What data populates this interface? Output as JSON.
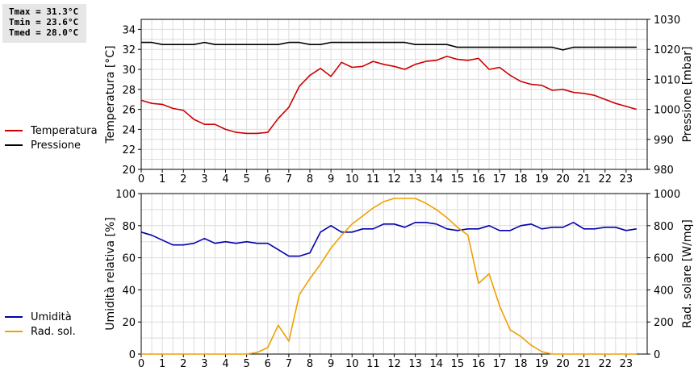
{
  "stats": {
    "lines": [
      "Tmax = 31.3°C",
      "Tmin = 23.6°C",
      "Tmed = 28.0°C"
    ]
  },
  "chart_data": [
    {
      "type": "line",
      "x_ticks": [
        0,
        1,
        2,
        3,
        4,
        5,
        6,
        7,
        8,
        9,
        10,
        11,
        12,
        13,
        14,
        15,
        16,
        17,
        18,
        19,
        20,
        21,
        22,
        23
      ],
      "ylabel": "Temperatura [°C]",
      "y2label": "Pressione [mbar]",
      "ylim": [
        20,
        35
      ],
      "y2lim": [
        980,
        1030
      ],
      "y_ticks": [
        20,
        22,
        24,
        26,
        28,
        30,
        32,
        34
      ],
      "y2_ticks": [
        980,
        990,
        1000,
        1010,
        1020,
        1030
      ],
      "grid": true,
      "legend_position": "left",
      "series": [
        {
          "name": "Temperatura",
          "axis": "left",
          "color": "#cc0000",
          "x": [
            0,
            0.5,
            1,
            1.5,
            2,
            2.5,
            3,
            3.5,
            4,
            4.5,
            5,
            5.5,
            6,
            6.5,
            7,
            7.5,
            8,
            8.5,
            9,
            9.5,
            10,
            10.5,
            11,
            11.5,
            12,
            12.5,
            13,
            13.5,
            14,
            14.5,
            15,
            15.5,
            16,
            16.5,
            17,
            17.5,
            18,
            18.5,
            19,
            19.5,
            20,
            20.5,
            21,
            21.5,
            22,
            22.5,
            23,
            23.5
          ],
          "values": [
            26.9,
            26.6,
            26.5,
            26.1,
            25.9,
            25.0,
            24.5,
            24.5,
            24.0,
            23.7,
            23.6,
            23.6,
            23.7,
            25.1,
            26.2,
            28.3,
            29.4,
            30.1,
            29.3,
            30.7,
            30.2,
            30.3,
            30.8,
            30.5,
            30.3,
            30.0,
            30.5,
            30.8,
            30.9,
            31.3,
            31.0,
            30.9,
            31.1,
            30.0,
            30.2,
            29.4,
            28.8,
            28.5,
            28.4,
            27.9,
            28.0,
            27.7,
            27.6,
            27.4,
            27.0,
            26.6,
            26.3,
            26.0
          ]
        },
        {
          "name": "Pressione",
          "axis": "right",
          "color": "#000000",
          "x": [
            0,
            0.5,
            1,
            1.5,
            2,
            2.5,
            3,
            3.5,
            4,
            4.5,
            5,
            5.5,
            6,
            6.5,
            7,
            7.5,
            8,
            8.5,
            9,
            9.5,
            10,
            10.5,
            11,
            11.5,
            12,
            12.5,
            13,
            13.5,
            14,
            14.5,
            15,
            15.5,
            16,
            16.5,
            17,
            17.5,
            18,
            18.5,
            19,
            19.5,
            20,
            20.5,
            21,
            21.5,
            22,
            22.5,
            23,
            23.5
          ],
          "values": [
            1022.3,
            1022.3,
            1021.6,
            1021.6,
            1021.6,
            1021.6,
            1022.3,
            1021.6,
            1021.6,
            1021.6,
            1021.6,
            1021.6,
            1021.6,
            1021.6,
            1022.3,
            1022.3,
            1021.6,
            1021.6,
            1022.3,
            1022.3,
            1022.3,
            1022.3,
            1022.3,
            1022.3,
            1022.3,
            1022.3,
            1021.6,
            1021.6,
            1021.6,
            1021.6,
            1020.7,
            1020.7,
            1020.7,
            1020.7,
            1020.7,
            1020.7,
            1020.7,
            1020.7,
            1020.7,
            1020.7,
            1019.8,
            1020.7,
            1020.7,
            1020.7,
            1020.7,
            1020.7,
            1020.7,
            1020.7
          ]
        }
      ]
    },
    {
      "type": "line",
      "x_ticks": [
        0,
        1,
        2,
        3,
        4,
        5,
        6,
        7,
        8,
        9,
        10,
        11,
        12,
        13,
        14,
        15,
        16,
        17,
        18,
        19,
        20,
        21,
        22,
        23
      ],
      "ylabel": "Umidità relativa [%]",
      "y2label": "Rad. solare [W/mq]",
      "ylim": [
        0,
        100
      ],
      "y2lim": [
        0,
        1000
      ],
      "y_ticks": [
        0,
        20,
        40,
        60,
        80,
        100
      ],
      "y2_ticks": [
        0,
        200,
        400,
        600,
        800,
        1000
      ],
      "grid": true,
      "legend_position": "left",
      "series": [
        {
          "name": "Umidità",
          "axis": "left",
          "color": "#0000aa",
          "x": [
            0,
            0.5,
            1,
            1.5,
            2,
            2.5,
            3,
            3.5,
            4,
            4.5,
            5,
            5.5,
            6,
            6.5,
            7,
            7.5,
            8,
            8.5,
            9,
            9.5,
            10,
            10.5,
            11,
            11.5,
            12,
            12.5,
            13,
            13.5,
            14,
            14.5,
            15,
            15.5,
            16,
            16.5,
            17,
            17.5,
            18,
            18.5,
            19,
            19.5,
            20,
            20.5,
            21,
            21.5,
            22,
            22.5,
            23,
            23.5
          ],
          "values": [
            76,
            74,
            71,
            68,
            68,
            69,
            72,
            69,
            70,
            69,
            70,
            69,
            69,
            65,
            61,
            61,
            63,
            76,
            80,
            76,
            76,
            78,
            78,
            81,
            81,
            79,
            82,
            82,
            81,
            78,
            77,
            78,
            78,
            80,
            77,
            77,
            80,
            81,
            78,
            79,
            79,
            82,
            78,
            78,
            79,
            79,
            77,
            78
          ]
        },
        {
          "name": "Rad. sol.",
          "axis": "right",
          "color": "#f0a000",
          "x": [
            0,
            0.5,
            1,
            1.5,
            2,
            2.5,
            3,
            3.5,
            4,
            4.5,
            5,
            5.5,
            6,
            6.5,
            7,
            7.5,
            8,
            8.5,
            9,
            9.5,
            10,
            10.5,
            11,
            11.5,
            12,
            12.5,
            13,
            13.5,
            14,
            14.5,
            15,
            15.5,
            16,
            16.5,
            17,
            17.5,
            18,
            18.5,
            19,
            19.5,
            20,
            20.5,
            21,
            21.5,
            22,
            22.5,
            23,
            23.5
          ],
          "values": [
            0,
            0,
            0,
            0,
            0,
            0,
            0,
            0,
            0,
            0,
            0,
            10,
            40,
            180,
            80,
            370,
            470,
            560,
            660,
            740,
            810,
            860,
            910,
            950,
            970,
            970,
            970,
            940,
            900,
            850,
            790,
            740,
            440,
            500,
            300,
            150,
            110,
            55,
            15,
            0,
            0,
            0,
            0,
            0,
            0,
            0,
            0,
            0
          ]
        }
      ]
    }
  ]
}
